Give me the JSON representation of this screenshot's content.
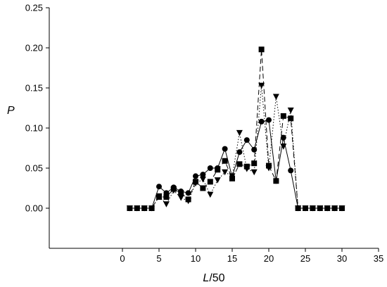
{
  "chart_data": {
    "type": "line",
    "xlabel_italic": "L",
    "xlabel_rest": "/50",
    "ylabel": "P",
    "xlim": [
      -10,
      35
    ],
    "ylim": [
      -0.05,
      0.25
    ],
    "xticks": [
      0,
      5,
      10,
      15,
      20,
      25,
      30,
      35
    ],
    "yticks": [
      0.0,
      0.05,
      0.1,
      0.15,
      0.2,
      0.25
    ],
    "xtick_labels": [
      "0",
      "5",
      "10",
      "15",
      "20",
      "25",
      "30",
      "35"
    ],
    "ytick_labels": [
      "0.00",
      "0.05",
      "0.10",
      "0.15",
      "0.20",
      "0.25"
    ],
    "grid": false,
    "color": "#000000",
    "x": [
      1,
      2,
      3,
      4,
      5,
      6,
      7,
      8,
      9,
      10,
      11,
      12,
      13,
      14,
      15,
      16,
      17,
      18,
      19,
      20,
      21,
      22,
      23,
      24,
      25,
      26,
      27,
      28,
      29,
      30
    ],
    "series": [
      {
        "marker": "circle",
        "line": "solid",
        "values": [
          0,
          0,
          0,
          0,
          0.027,
          0.019,
          0.026,
          0.021,
          0.019,
          0.04,
          0.042,
          0.05,
          0.05,
          0.074,
          0.039,
          0.07,
          0.085,
          0.073,
          0.108,
          0.11,
          0.034,
          0.088,
          0.047,
          0,
          0,
          0,
          0,
          0,
          0,
          0
        ]
      },
      {
        "marker": "triangle-down",
        "line": "dotted",
        "values": [
          0,
          0,
          0,
          0,
          0.015,
          0.005,
          0.022,
          0.013,
          0.009,
          0.031,
          0.036,
          0.017,
          0.035,
          0.045,
          0.04,
          0.094,
          0.049,
          0.045,
          0.153,
          0.05,
          0.139,
          0.077,
          0.122,
          0,
          0,
          0,
          0,
          0,
          0,
          0
        ]
      },
      {
        "marker": "square",
        "line": "dashed",
        "values": [
          0,
          0,
          0,
          0,
          0.014,
          0.014,
          0.024,
          0.019,
          0.011,
          0.033,
          0.025,
          0.033,
          0.048,
          0.059,
          0.037,
          0.055,
          0.052,
          0.056,
          0.198,
          0.053,
          0.034,
          0.115,
          0.112,
          0,
          0,
          0,
          0,
          0,
          0,
          0
        ]
      }
    ]
  }
}
